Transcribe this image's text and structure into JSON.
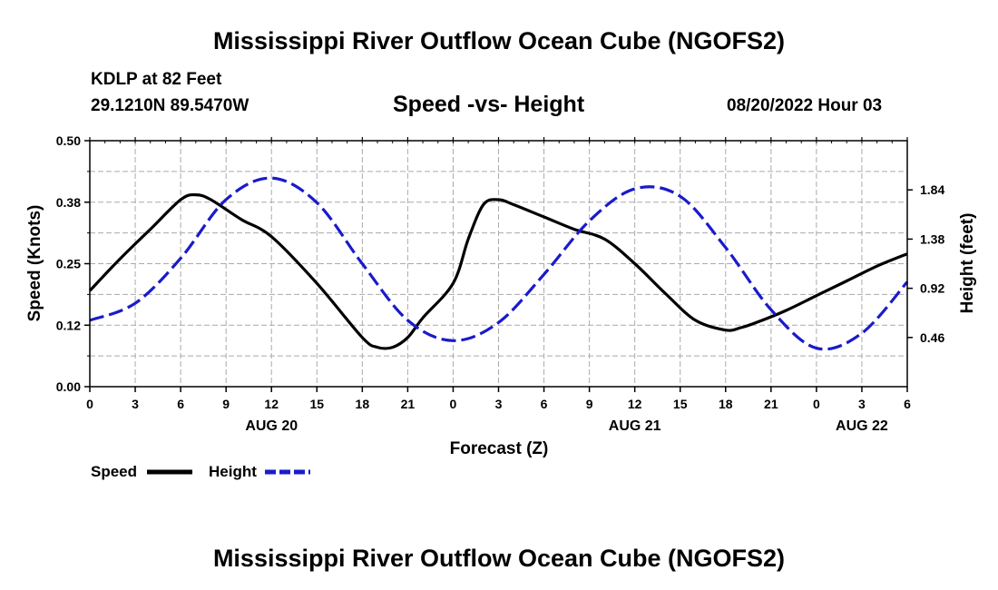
{
  "page": {
    "title": "Mississippi River Outflow Ocean Cube (NGOFS2)",
    "title_repeat": "Mississippi River Outflow Ocean Cube (NGOFS2)",
    "station": "KDLP at 82 Feet",
    "coords": "29.1210N  89.5470W",
    "chart_subtitle": "Speed -vs- Height",
    "datetime": "08/20/2022 Hour 03"
  },
  "colors": {
    "speed": "#000000",
    "height": "#1a1acc",
    "grid": "#aaaaaa"
  },
  "chart_data": {
    "type": "line",
    "title": "Speed -vs- Height",
    "xlabel": "Forecast (Z)",
    "ylabel": "Speed (Knots)",
    "y2label": "Height (feet)",
    "x_range_hours": [
      0,
      54
    ],
    "ylim": [
      0,
      0.5
    ],
    "y2lim": [
      0.0,
      2.3
    ],
    "x_ticks": [
      0,
      3,
      6,
      9,
      12,
      15,
      18,
      21,
      24,
      27,
      30,
      33,
      36,
      39,
      42,
      45,
      48,
      51,
      54
    ],
    "x_tick_labels": [
      "0",
      "3",
      "6",
      "9",
      "12",
      "15",
      "18",
      "21",
      "0",
      "3",
      "6",
      "9",
      "12",
      "15",
      "18",
      "21",
      "0",
      "3",
      "6"
    ],
    "day_labels": [
      {
        "hour": 12,
        "label": "AUG 20"
      },
      {
        "hour": 36,
        "label": "AUG 21"
      },
      {
        "hour": 51,
        "label": "AUG 22"
      }
    ],
    "y_ticks": [
      0,
      0.125,
      0.25,
      0.375,
      0.5
    ],
    "y_tick_labels": [
      "0.00",
      "0.12",
      "0.25",
      "0.38",
      "0.50"
    ],
    "y2_ticks": [
      0.46,
      0.92,
      1.38,
      1.84
    ],
    "y2_tick_labels": [
      "0.46",
      "0.92",
      "1.38",
      "1.84"
    ],
    "legend": [
      {
        "name": "Speed",
        "style": "solid"
      },
      {
        "name": "Height",
        "style": "dashed"
      }
    ],
    "series": [
      {
        "name": "Speed",
        "axis": "left",
        "style": "solid",
        "x": [
          0,
          2,
          4,
          6,
          7,
          8,
          10,
          12,
          15,
          18,
          19,
          20,
          21,
          22,
          24,
          25,
          26,
          27,
          28,
          30,
          32,
          34,
          36,
          38,
          40,
          42,
          43,
          44,
          46,
          48,
          50,
          52,
          54
        ],
        "y": [
          0.195,
          0.26,
          0.32,
          0.38,
          0.39,
          0.38,
          0.34,
          0.305,
          0.21,
          0.1,
          0.08,
          0.08,
          0.1,
          0.14,
          0.21,
          0.3,
          0.37,
          0.38,
          0.37,
          0.345,
          0.32,
          0.3,
          0.25,
          0.19,
          0.135,
          0.115,
          0.12,
          0.13,
          0.155,
          0.185,
          0.215,
          0.245,
          0.27
        ]
      },
      {
        "name": "Height",
        "axis": "right",
        "style": "dashed",
        "x": [
          0,
          3,
          6,
          9,
          12,
          15,
          18,
          21,
          24,
          27,
          30,
          33,
          36,
          39,
          42,
          45,
          48,
          51,
          54
        ],
        "y": [
          0.62,
          0.78,
          1.2,
          1.75,
          1.95,
          1.72,
          1.15,
          0.62,
          0.43,
          0.6,
          1.05,
          1.55,
          1.85,
          1.78,
          1.3,
          0.72,
          0.36,
          0.5,
          0.98
        ]
      }
    ]
  }
}
